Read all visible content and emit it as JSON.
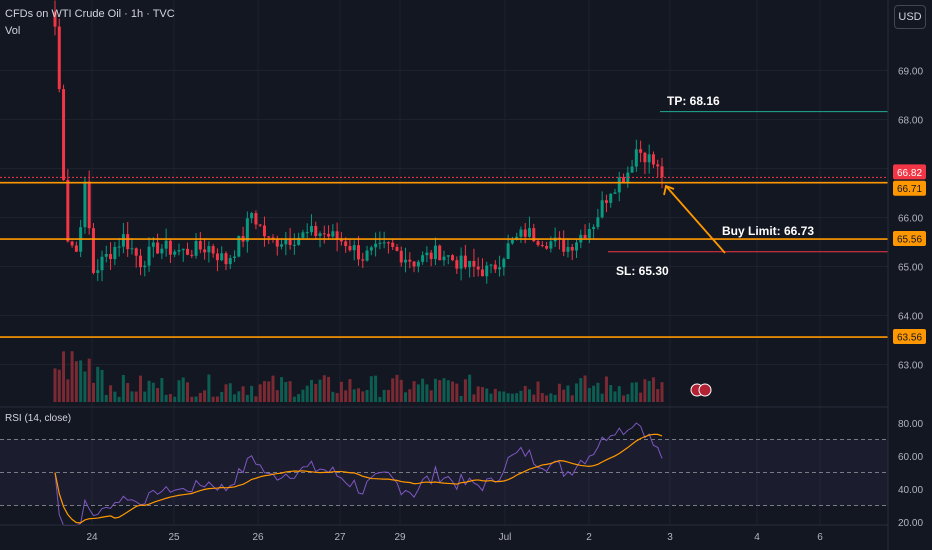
{
  "header": {
    "title": "CFDs on WTI Crude Oil · 1h · TVC",
    "volume_label": "Vol",
    "currency_button": "USD"
  },
  "rsi_panel": {
    "label": "RSI (14, close)",
    "ticks": [
      "80.00",
      "60.00",
      "40.00",
      "20.00"
    ]
  },
  "price_axis": {
    "ticks": [
      "69.00",
      "68.00",
      "67.00",
      "66.00",
      "65.00",
      "64.00",
      "63.00"
    ]
  },
  "time_axis": {
    "ticks": [
      "24",
      "25",
      "26",
      "27",
      "29",
      "Jul",
      "2",
      "3",
      "4",
      "6"
    ]
  },
  "annotations": {
    "tp": "TP: 68.16",
    "buy_limit": "Buy Limit: 66.73",
    "sl": "SL: 65.30"
  },
  "price_badges": [
    {
      "text": "66.82",
      "color": "#f23645"
    },
    {
      "text": "66.71",
      "color": "#ff9800"
    },
    {
      "text": "65.56",
      "color": "#ff9800"
    },
    {
      "text": "63.56",
      "color": "#ff9800"
    }
  ],
  "colors": {
    "up": "#089981",
    "down": "#f23645",
    "level": "#ff9800",
    "tp_line": "#22ab94",
    "sl_line": "#f23645",
    "rsi": "#7e57c2",
    "rsi_ma": "#ff9800"
  },
  "chart_data": {
    "type": "candlestick",
    "series": [
      {
        "name": "CFDs on WTI Crude Oil",
        "kind": "ohlc",
        "anchors": [
          [
            0,
            69.9
          ],
          [
            1,
            68.6
          ],
          [
            2,
            66.9
          ],
          [
            3,
            65.6
          ],
          [
            5,
            65.3
          ],
          [
            7,
            66.6
          ],
          [
            9,
            64.9
          ],
          [
            12,
            65.2
          ],
          [
            16,
            65.6
          ],
          [
            20,
            65.1
          ],
          [
            24,
            65.4
          ],
          [
            30,
            65.3
          ],
          [
            36,
            65.4
          ],
          [
            40,
            65.1
          ],
          [
            44,
            65.6
          ],
          [
            46,
            66.1
          ],
          [
            50,
            65.5
          ],
          [
            56,
            65.6
          ],
          [
            62,
            65.7
          ],
          [
            68,
            65.5
          ],
          [
            72,
            65.2
          ],
          [
            78,
            65.4
          ],
          [
            84,
            65.1
          ],
          [
            90,
            65.3
          ],
          [
            96,
            65.0
          ],
          [
            102,
            64.9
          ],
          [
            106,
            65.4
          ],
          [
            110,
            65.7
          ],
          [
            116,
            65.5
          ],
          [
            120,
            65.4
          ],
          [
            126,
            65.9
          ],
          [
            130,
            66.6
          ],
          [
            134,
            66.95
          ],
          [
            136,
            67.4
          ],
          [
            138,
            67.3
          ],
          [
            140,
            67.1
          ],
          [
            142,
            66.82
          ]
        ]
      },
      {
        "name": "Vol",
        "kind": "volume"
      },
      {
        "name": "RSI (14, close)",
        "kind": "rsi"
      }
    ],
    "x_labels": [
      "24",
      "25",
      "26",
      "27",
      "29",
      "Jul",
      "2",
      "3",
      "4",
      "6"
    ],
    "price_range": [
      62.6,
      70.2
    ],
    "rsi_range": [
      15,
      82
    ],
    "levels": [
      66.71,
      65.56,
      63.56
    ],
    "tp": 68.16,
    "buy_limit": 66.73,
    "sl": 65.3,
    "last_price": 66.82
  }
}
